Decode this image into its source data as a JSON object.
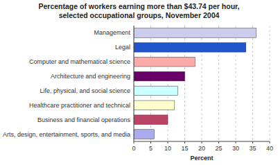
{
  "chart_data": {
    "type": "bar",
    "orientation": "horizontal",
    "title": "Percentage of workers earning more than $43.74 per hour,\nselected occupational groups, November 2004",
    "categories": [
      "Arts, design, entertainment, sports, and media",
      "Business and financial operations",
      "Healthcare practitioner and technical",
      "Life, physical, and social science",
      "Architecture and engineering",
      "Computer and mathematical science",
      "Legal",
      "Management"
    ],
    "values": [
      6.0,
      10.0,
      12.0,
      13.0,
      15.0,
      18.0,
      33.0,
      36.0
    ],
    "colors": [
      "#aaaaee",
      "#bb4466",
      "#ffffcc",
      "#ccffff",
      "#660066",
      "#ffaaaa",
      "#2255cc",
      "#ccccee"
    ],
    "xlabel": "Percent",
    "xlim": [
      0,
      40
    ],
    "xticks": [
      0,
      5,
      10,
      15,
      20,
      25,
      30,
      35,
      40
    ],
    "grid": true
  }
}
